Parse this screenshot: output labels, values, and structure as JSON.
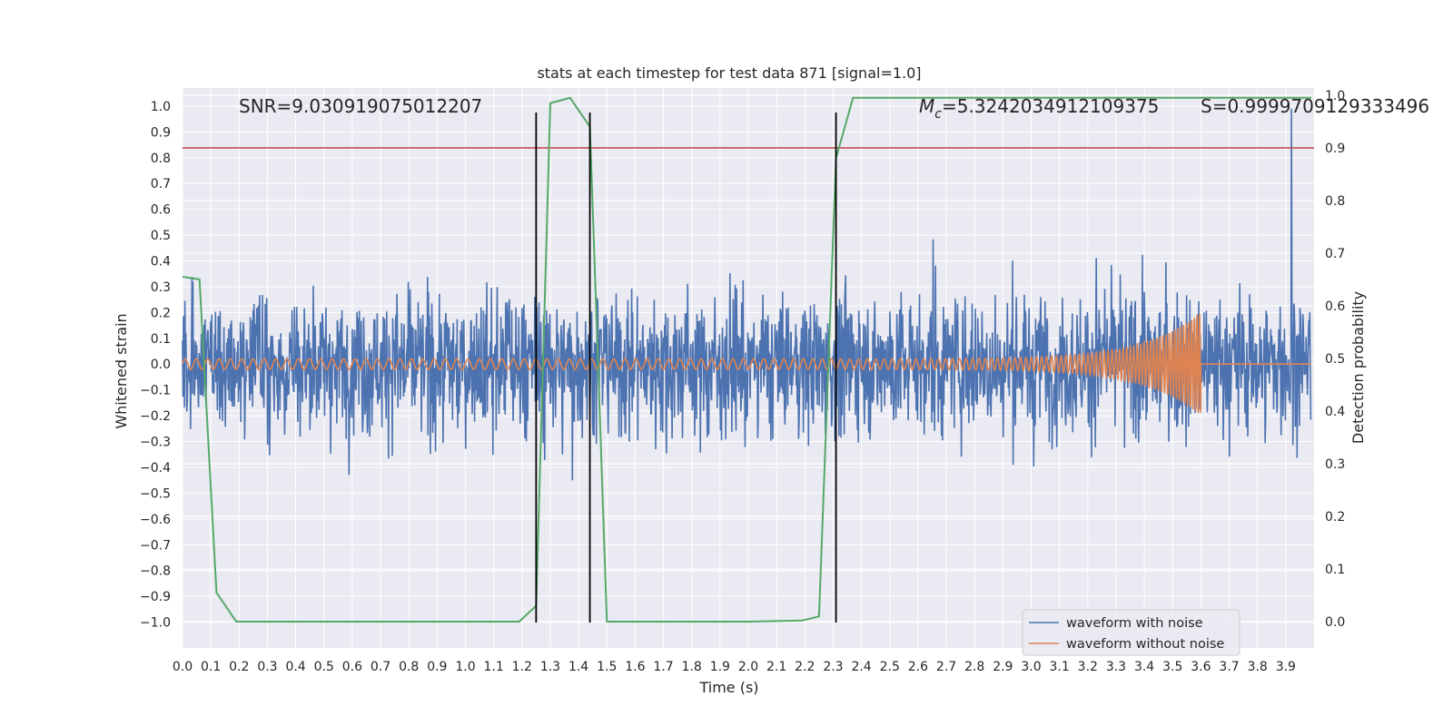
{
  "chart_data": {
    "type": "line",
    "title": "stats at each timestep for test data 871 [signal=1.0]",
    "xlabel": "Time (s)",
    "ylabel_left": "Whitened strain",
    "ylabel_right": "Detection probability",
    "xlim": [
      0.0,
      4.0
    ],
    "ylim_left": [
      -1.1,
      1.07
    ],
    "ylim_right": [
      -0.05,
      1.0136
    ],
    "x_ticks": [
      "0.0",
      "0.1",
      "0.2",
      "0.3",
      "0.4",
      "0.5",
      "0.6",
      "0.7",
      "0.8",
      "0.9",
      "1.0",
      "1.1",
      "1.2",
      "1.3",
      "1.4",
      "1.5",
      "1.6",
      "1.7",
      "1.8",
      "1.9",
      "2.0",
      "2.1",
      "2.2",
      "2.3",
      "2.4",
      "2.5",
      "2.6",
      "2.7",
      "2.8",
      "2.9",
      "3.0",
      "3.1",
      "3.2",
      "3.3",
      "3.4",
      "3.5",
      "3.6",
      "3.7",
      "3.8",
      "3.9"
    ],
    "y_ticks_left": [
      "1.0",
      "0.9",
      "0.8",
      "0.7",
      "0.6",
      "0.5",
      "0.4",
      "0.3",
      "0.2",
      "0.1",
      "0.0",
      "−0.1",
      "−0.2",
      "−0.3",
      "−0.4",
      "−0.5",
      "−0.6",
      "−0.7",
      "−0.8",
      "−0.9",
      "−1.0"
    ],
    "y_ticks_right": [
      "1.0",
      "0.9",
      "0.8",
      "0.7",
      "0.6",
      "0.5",
      "0.4",
      "0.3",
      "0.2",
      "0.1",
      "0.0"
    ],
    "annotations": {
      "snr": "SNR=9.030919075012207",
      "mc_symbol": "M",
      "mc_subscript": "c",
      "mc_value": "=5.3242034912109375",
      "s": "S=0.9999709129333496"
    },
    "threshold_line": {
      "axis": "right",
      "value": 0.9,
      "color": "#c44e52"
    },
    "vertical_lines": {
      "x": [
        1.25,
        1.44,
        2.31
      ],
      "color": "#000000"
    },
    "series": [
      {
        "name": "waveform with noise",
        "axis": "left",
        "color": "#4c72b0",
        "description": "dense noise, amplitude mostly within ±0.5 with peaks to ~1.0 at 3.92 s"
      },
      {
        "name": "waveform without noise",
        "axis": "left",
        "color": "#dd8452",
        "chirp": {
          "start_amplitude": 0.02,
          "peak_amplitude": 0.2,
          "merger_time": 3.6,
          "start_frequency_hz": 25,
          "end_frequency_hz": 110
        }
      },
      {
        "name": "detection probability",
        "axis": "right",
        "color": "#55a868",
        "x": [
          0.0,
          0.06,
          0.12,
          0.19,
          0.5,
          1.0,
          1.19,
          1.25,
          1.3,
          1.37,
          1.44,
          1.5,
          1.6,
          2.0,
          2.19,
          2.25,
          2.31,
          2.37,
          2.5,
          3.0,
          3.5,
          3.99
        ],
        "y": [
          0.655,
          0.65,
          0.055,
          0.0,
          0.0,
          0.0,
          0.0,
          0.03,
          0.985,
          0.995,
          0.94,
          0.0,
          0.0,
          0.0,
          0.002,
          0.01,
          0.88,
          0.995,
          0.995,
          0.995,
          0.995,
          0.995
        ]
      }
    ],
    "legend": {
      "position": "lower-right",
      "entries": [
        "waveform with noise",
        "waveform without noise"
      ]
    }
  }
}
